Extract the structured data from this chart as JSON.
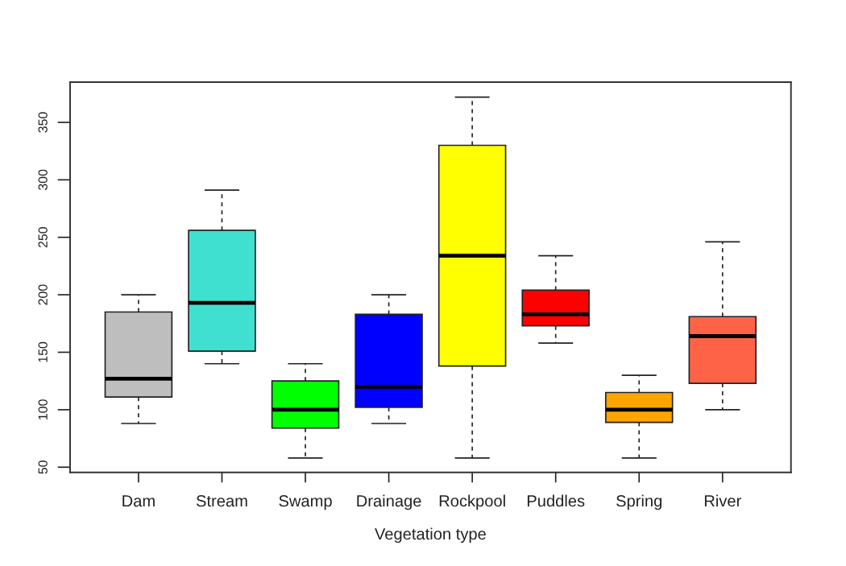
{
  "chart_data": {
    "type": "box",
    "xlabel": "Vegetation type",
    "categories": [
      "Dam",
      "Stream",
      "Swamp",
      "Drainage",
      "Rockpool",
      "Puddles",
      "Spring",
      "River"
    ],
    "boxes": [
      {
        "low": 88,
        "q1": 111,
        "median": 127,
        "q3": 185,
        "high": 200
      },
      {
        "low": 140,
        "q1": 151,
        "median": 193,
        "q3": 256,
        "high": 291
      },
      {
        "low": 58,
        "q1": 84,
        "median": 100,
        "q3": 125,
        "high": 140
      },
      {
        "low": 88,
        "q1": 102,
        "median": 120,
        "q3": 183,
        "high": 200
      },
      {
        "low": 58,
        "q1": 138,
        "median": 234,
        "q3": 330,
        "high": 372
      },
      {
        "low": 158,
        "q1": 173,
        "median": 183,
        "q3": 204,
        "high": 234
      },
      {
        "low": 58,
        "q1": 89,
        "median": 100,
        "q3": 115,
        "high": 130
      },
      {
        "low": 100,
        "q1": 123,
        "median": 164,
        "q3": 181,
        "high": 246
      }
    ],
    "colors": [
      "#bebebe",
      "#40e0d0",
      "#00ff00",
      "#0000ff",
      "#ffff00",
      "#ff0000",
      "#ffa500",
      "#ff6347"
    ],
    "ylim": [
      45.5,
      385
    ],
    "yticks": [
      50,
      100,
      150,
      200,
      250,
      300,
      350
    ]
  }
}
